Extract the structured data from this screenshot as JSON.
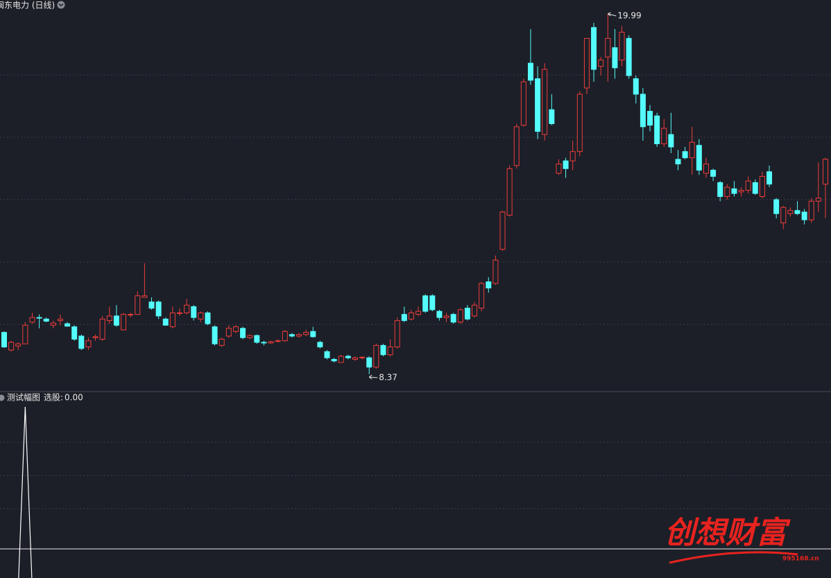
{
  "chart_data": {
    "type": "candlestick",
    "title": "闽东电力 (日线)",
    "up_color": "#f03c3c",
    "down_color": "#54fcfc",
    "ohlc": [
      [
        9.72,
        9.75,
        9.22,
        9.25
      ],
      [
        9.15,
        9.45,
        9.1,
        9.4
      ],
      [
        9.28,
        9.4,
        9.15,
        9.35
      ],
      [
        9.35,
        10.05,
        9.35,
        9.95
      ],
      [
        10.05,
        10.35,
        10.0,
        10.2
      ],
      [
        10.2,
        10.3,
        9.85,
        10.18
      ],
      [
        10.15,
        10.2,
        10.05,
        10.08
      ],
      [
        9.95,
        10.1,
        9.85,
        10.02
      ],
      [
        10.1,
        10.3,
        9.95,
        10.15
      ],
      [
        10.0,
        10.05,
        9.9,
        9.92
      ],
      [
        9.9,
        9.95,
        9.45,
        9.5
      ],
      [
        9.6,
        9.65,
        9.15,
        9.2
      ],
      [
        9.25,
        9.55,
        9.15,
        9.45
      ],
      [
        9.55,
        9.65,
        9.45,
        9.58
      ],
      [
        9.5,
        10.25,
        9.45,
        10.15
      ],
      [
        10.1,
        10.55,
        10.0,
        10.25
      ],
      [
        10.25,
        10.6,
        9.9,
        9.95
      ],
      [
        9.8,
        10.35,
        9.8,
        10.3
      ],
      [
        10.28,
        10.35,
        10.2,
        10.3
      ],
      [
        10.3,
        11.05,
        10.3,
        10.9
      ],
      [
        10.85,
        11.95,
        10.85,
        10.9
      ],
      [
        10.7,
        10.85,
        10.45,
        10.5
      ],
      [
        10.7,
        10.75,
        10.15,
        10.25
      ],
      [
        10.15,
        10.2,
        9.95,
        9.95
      ],
      [
        9.9,
        10.55,
        9.85,
        10.35
      ],
      [
        10.33,
        10.5,
        10.25,
        10.35
      ],
      [
        10.35,
        10.8,
        10.3,
        10.6
      ],
      [
        10.55,
        10.6,
        10.1,
        10.2
      ],
      [
        10.15,
        10.4,
        10.05,
        10.35
      ],
      [
        10.35,
        10.4,
        9.95,
        10.0
      ],
      [
        9.9,
        9.95,
        9.3,
        9.35
      ],
      [
        9.3,
        9.55,
        9.25,
        9.5
      ],
      [
        9.6,
        9.95,
        9.55,
        9.85
      ],
      [
        9.75,
        9.95,
        9.7,
        9.9
      ],
      [
        9.85,
        9.9,
        9.5,
        9.55
      ],
      [
        9.55,
        9.65,
        9.5,
        9.62
      ],
      [
        9.62,
        9.65,
        9.35,
        9.4
      ],
      [
        9.4,
        9.45,
        9.3,
        9.38
      ],
      [
        9.38,
        9.45,
        9.35,
        9.42
      ],
      [
        9.43,
        9.5,
        9.4,
        9.45
      ],
      [
        9.45,
        9.8,
        9.42,
        9.75
      ],
      [
        9.65,
        9.7,
        9.55,
        9.6
      ],
      [
        9.6,
        9.7,
        9.55,
        9.65
      ],
      [
        9.65,
        9.8,
        9.6,
        9.72
      ],
      [
        9.75,
        9.9,
        9.55,
        9.58
      ],
      [
        9.4,
        9.45,
        9.2,
        9.25
      ],
      [
        9.1,
        9.15,
        8.85,
        8.9
      ],
      [
        8.85,
        8.9,
        8.75,
        8.8
      ],
      [
        8.75,
        9.0,
        8.75,
        8.95
      ],
      [
        8.95,
        9.0,
        8.85,
        8.9
      ],
      [
        8.85,
        8.95,
        8.8,
        8.9
      ],
      [
        8.9,
        8.95,
        8.85,
        8.92
      ],
      [
        8.9,
        8.95,
        8.37,
        8.6
      ],
      [
        8.6,
        9.35,
        8.55,
        9.3
      ],
      [
        9.3,
        9.35,
        8.95,
        9.0
      ],
      [
        9.0,
        9.5,
        8.95,
        9.25
      ],
      [
        9.25,
        10.2,
        9.2,
        10.1
      ],
      [
        10.3,
        10.55,
        10.05,
        10.1
      ],
      [
        10.15,
        10.45,
        10.1,
        10.35
      ],
      [
        10.3,
        10.55,
        10.25,
        10.4
      ],
      [
        10.9,
        10.95,
        10.35,
        10.4
      ],
      [
        10.9,
        10.95,
        10.4,
        10.45
      ],
      [
        10.4,
        10.45,
        10.1,
        10.2
      ],
      [
        10.2,
        10.35,
        10.05,
        10.25
      ],
      [
        10.3,
        10.35,
        10.0,
        10.05
      ],
      [
        10.05,
        10.5,
        10.0,
        10.45
      ],
      [
        10.5,
        10.6,
        10.1,
        10.15
      ],
      [
        10.25,
        10.7,
        10.2,
        10.6
      ],
      [
        10.5,
        11.35,
        10.4,
        11.3
      ],
      [
        11.35,
        11.5,
        11.0,
        11.15
      ],
      [
        11.3,
        12.2,
        11.25,
        12.05
      ],
      [
        12.4,
        13.65,
        12.35,
        13.6
      ],
      [
        13.5,
        15.1,
        13.45,
        15.0
      ],
      [
        15.1,
        16.45,
        15.0,
        16.35
      ],
      [
        16.4,
        17.9,
        16.35,
        17.8
      ],
      [
        18.4,
        19.5,
        17.7,
        17.85
      ],
      [
        17.9,
        18.3,
        15.95,
        16.2
      ],
      [
        16.1,
        18.4,
        15.9,
        18.2
      ],
      [
        16.9,
        17.4,
        16.4,
        16.45
      ],
      [
        14.85,
        15.3,
        14.8,
        15.15
      ],
      [
        15.25,
        15.35,
        14.7,
        15.0
      ],
      [
        15.25,
        15.9,
        14.95,
        15.55
      ],
      [
        15.55,
        17.5,
        15.4,
        17.4
      ],
      [
        17.6,
        19.2,
        17.4,
        19.2
      ],
      [
        19.55,
        19.7,
        17.8,
        18.2
      ],
      [
        18.3,
        18.6,
        18.0,
        18.5
      ],
      [
        18.6,
        19.99,
        17.8,
        19.2
      ],
      [
        18.9,
        19.5,
        17.9,
        18.25
      ],
      [
        18.5,
        19.6,
        18.3,
        19.4
      ],
      [
        19.2,
        19.3,
        17.9,
        18.0
      ],
      [
        17.9,
        18.0,
        17.1,
        17.4
      ],
      [
        17.4,
        17.6,
        15.9,
        16.35
      ],
      [
        16.85,
        17.05,
        16.2,
        16.4
      ],
      [
        16.7,
        16.8,
        15.7,
        15.8
      ],
      [
        15.8,
        16.6,
        15.7,
        16.3
      ],
      [
        16.1,
        16.8,
        15.5,
        15.7
      ],
      [
        15.3,
        15.6,
        14.95,
        15.15
      ],
      [
        15.55,
        15.7,
        15.3,
        15.35
      ],
      [
        15.35,
        16.35,
        14.8,
        15.85
      ],
      [
        15.75,
        15.95,
        14.8,
        14.95
      ],
      [
        14.85,
        15.35,
        14.7,
        15.15
      ],
      [
        14.95,
        15.0,
        14.6,
        14.75
      ],
      [
        14.55,
        14.6,
        13.95,
        14.1
      ],
      [
        14.1,
        14.5,
        14.0,
        14.4
      ],
      [
        14.35,
        14.6,
        14.1,
        14.2
      ],
      [
        14.25,
        14.4,
        14.1,
        14.3
      ],
      [
        14.3,
        14.75,
        14.2,
        14.6
      ],
      [
        14.55,
        14.65,
        14.15,
        14.2
      ],
      [
        14.1,
        14.9,
        14.05,
        14.75
      ],
      [
        14.9,
        15.1,
        14.4,
        14.5
      ],
      [
        14.0,
        14.05,
        13.4,
        13.55
      ],
      [
        13.25,
        13.8,
        13.05,
        13.75
      ],
      [
        13.55,
        13.75,
        13.45,
        13.65
      ],
      [
        13.65,
        13.95,
        13.5,
        13.55
      ],
      [
        13.6,
        13.7,
        13.2,
        13.35
      ],
      [
        13.35,
        14.05,
        13.25,
        13.95
      ],
      [
        13.95,
        15.2,
        13.6,
        14.05
      ],
      [
        14.5,
        15.35,
        13.4,
        15.3
      ]
    ],
    "max_label": 19.99,
    "min_label": 8.37,
    "indicator": {
      "title": "测试幅图",
      "name": "选股:",
      "value_label": "0.00",
      "color": "#ffffff",
      "values": [
        0,
        0,
        0,
        1,
        0,
        0,
        0,
        0,
        0,
        0,
        0,
        0,
        0,
        0,
        0,
        0,
        0,
        0,
        0,
        0,
        0,
        0,
        0,
        0,
        0,
        0,
        0,
        0,
        0,
        0,
        0,
        0,
        0,
        0,
        0,
        0,
        0,
        0,
        0,
        0,
        0,
        0,
        0,
        0,
        0,
        0,
        0,
        0,
        0,
        0,
        0,
        0,
        0,
        0,
        0,
        0,
        0,
        0,
        0,
        0,
        0,
        0,
        0,
        0,
        0,
        0,
        0,
        0,
        0,
        0,
        0,
        0,
        0,
        0,
        0,
        0,
        0,
        0,
        0,
        0,
        0,
        0,
        0,
        0,
        0,
        0,
        0,
        0,
        0,
        0,
        0,
        0,
        0,
        0,
        0,
        0,
        0,
        0,
        0,
        0,
        0,
        0,
        0,
        0,
        0,
        0,
        0,
        0,
        0,
        0,
        0,
        0,
        0,
        0,
        0,
        0,
        0,
        0
      ]
    },
    "watermark": {
      "text": "创想财富",
      "url": "995168.cn"
    }
  }
}
